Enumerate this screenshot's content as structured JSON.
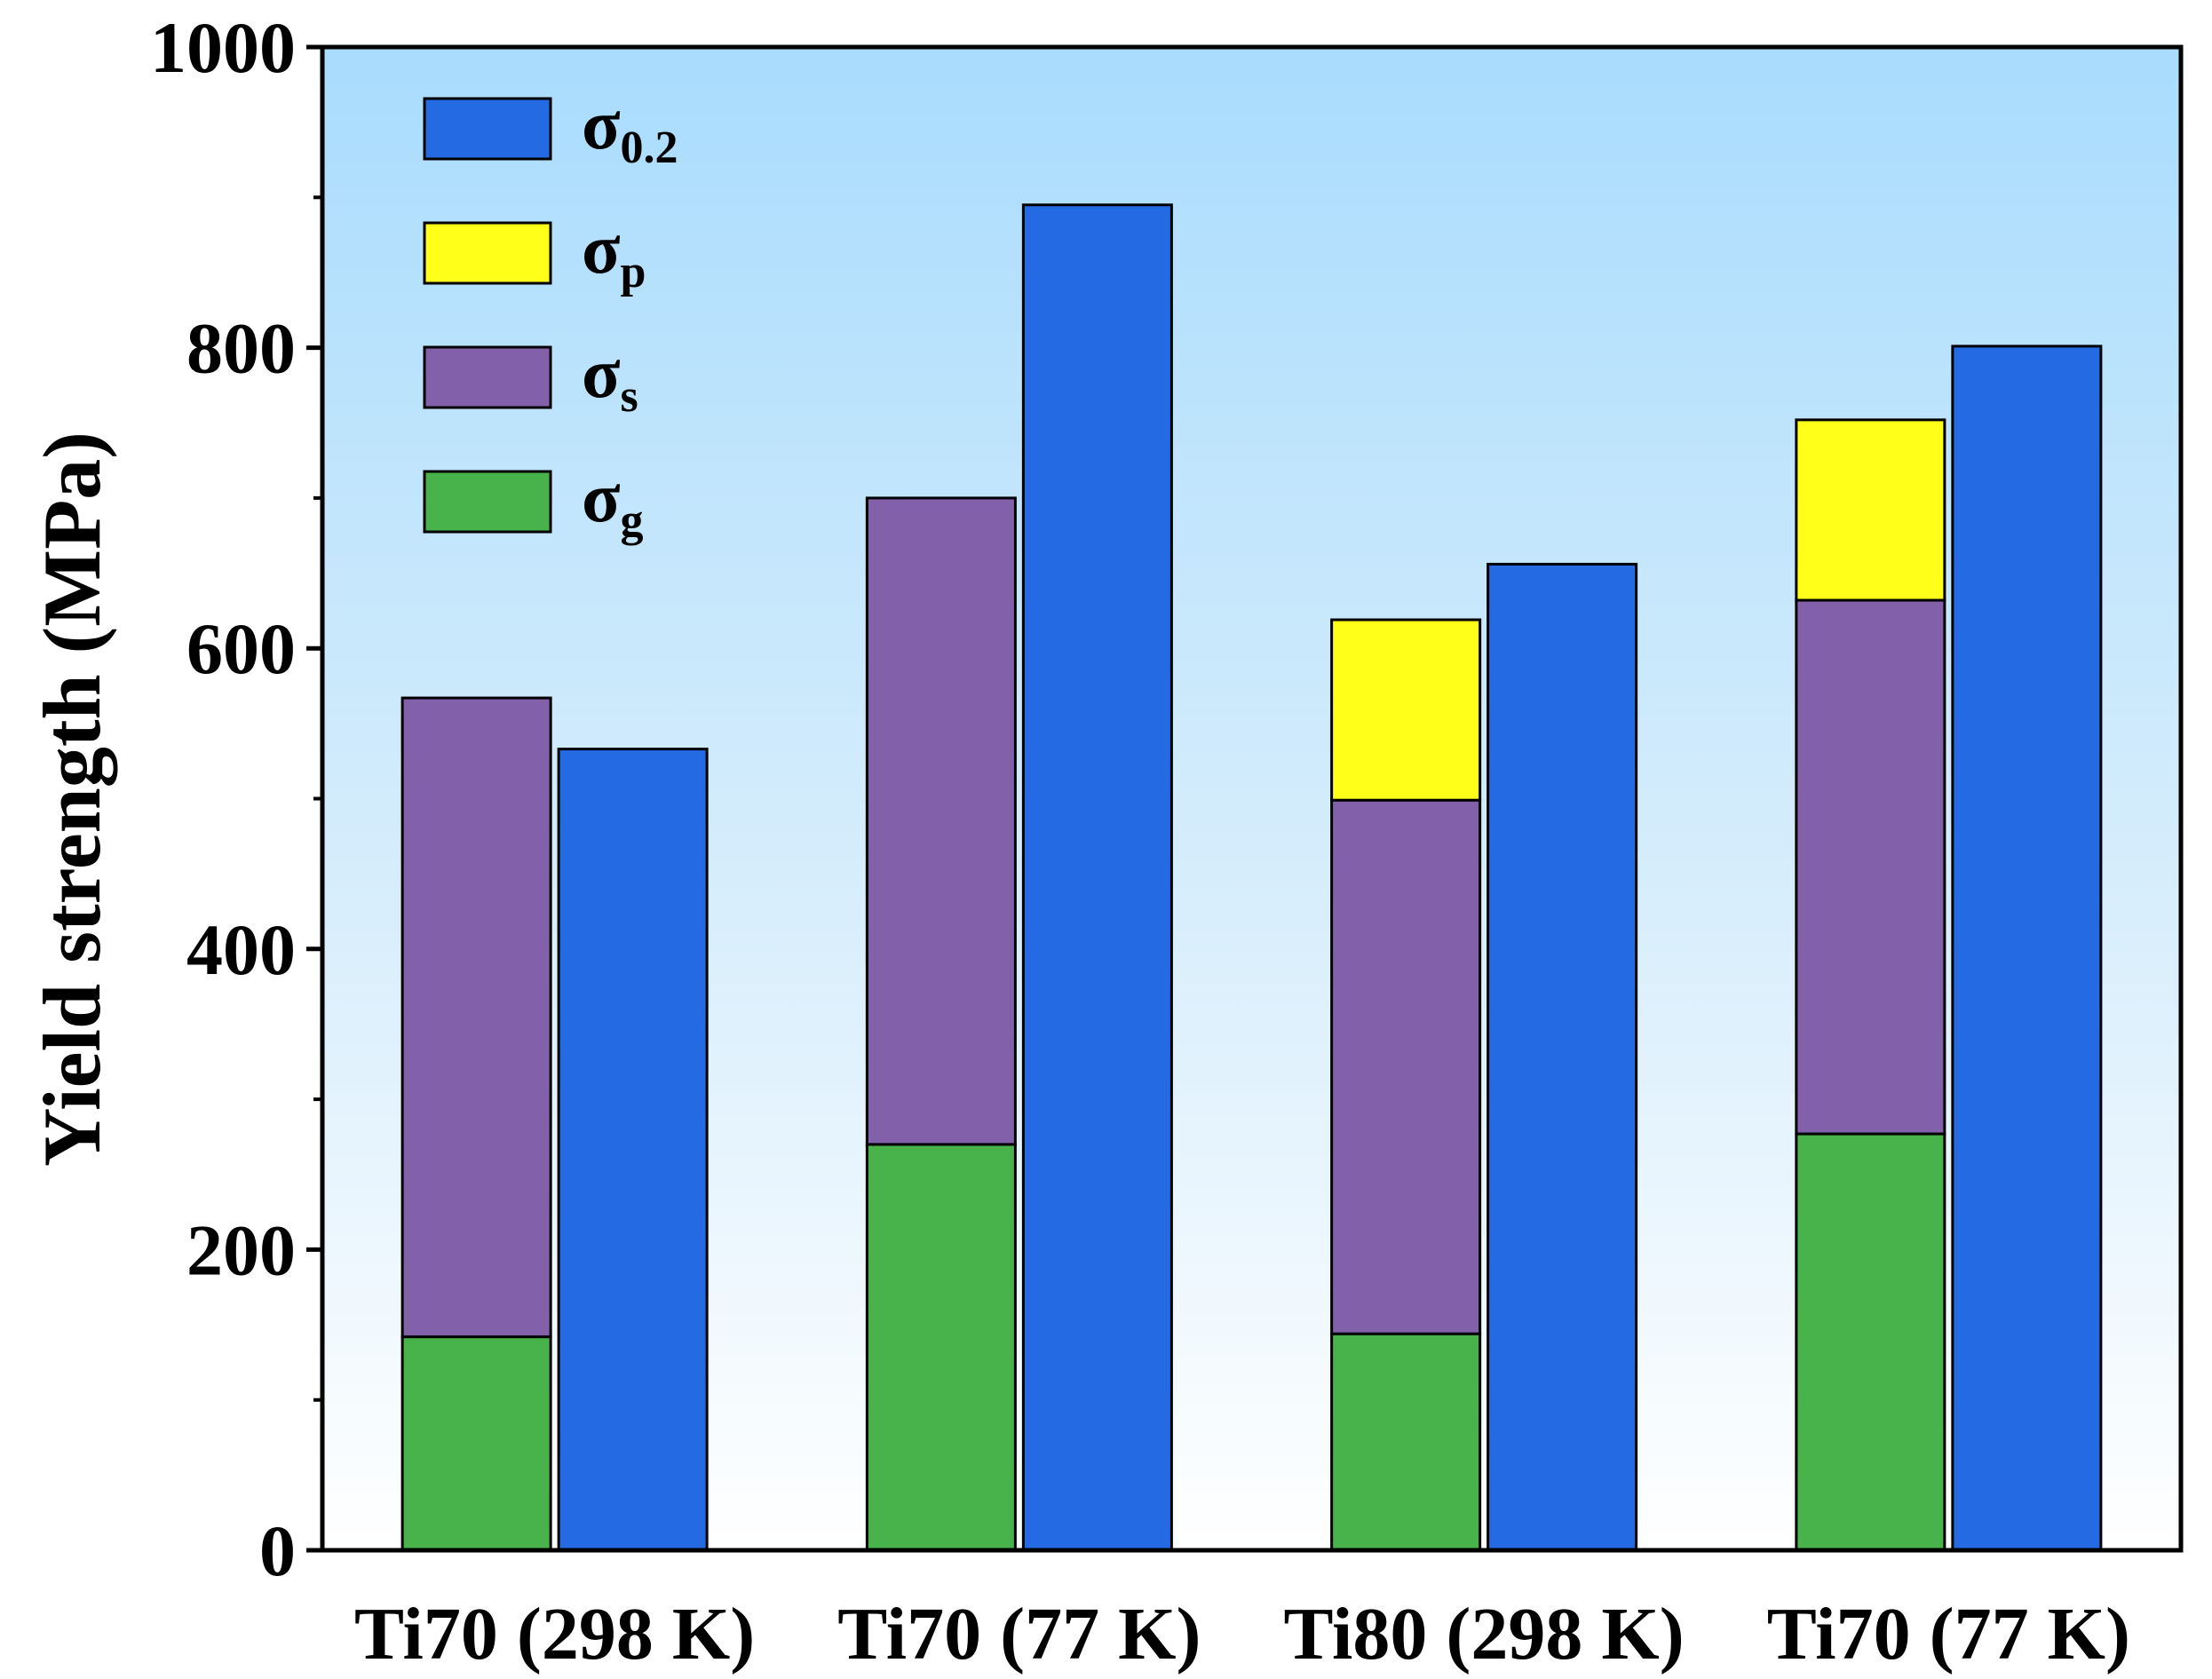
{
  "chart_data": {
    "type": "bar",
    "ylabel": "Yield strength (MPa)",
    "xlabel": "",
    "ylim": [
      0,
      1000
    ],
    "yticks": [
      0,
      200,
      400,
      600,
      800,
      1000
    ],
    "yminor_ticks": [
      100,
      300,
      500,
      700,
      900
    ],
    "grid": false,
    "legend_position": "top-left",
    "background": "vertical gradient, light blue top to white bottom",
    "categories": [
      "Ti70 (298 K)",
      "Ti70 (77 K)",
      "Ti80 (298 K)",
      "Ti70 (77 K)"
    ],
    "legend": [
      {
        "key": "sigma_02",
        "symbol": "σ",
        "sub": "0.2",
        "color": "#246be3"
      },
      {
        "key": "sigma_p",
        "symbol": "σ",
        "sub": "p",
        "color": "#ffff1a"
      },
      {
        "key": "sigma_s",
        "symbol": "σ",
        "sub": "s",
        "color": "#8360aa"
      },
      {
        "key": "sigma_g",
        "symbol": "σ",
        "sub": "g",
        "color": "#48b34a"
      }
    ],
    "stacked_bar": {
      "description": "calculated contributions (stacked, bottom to top: sigma_g, sigma_s, sigma_p)",
      "sigma_g": [
        142,
        270,
        144,
        277
      ],
      "sigma_s": [
        425,
        430,
        355,
        355
      ],
      "sigma_p": [
        0,
        0,
        120,
        120
      ]
    },
    "single_bar": {
      "sigma_02": [
        533,
        895,
        656,
        801
      ]
    }
  }
}
